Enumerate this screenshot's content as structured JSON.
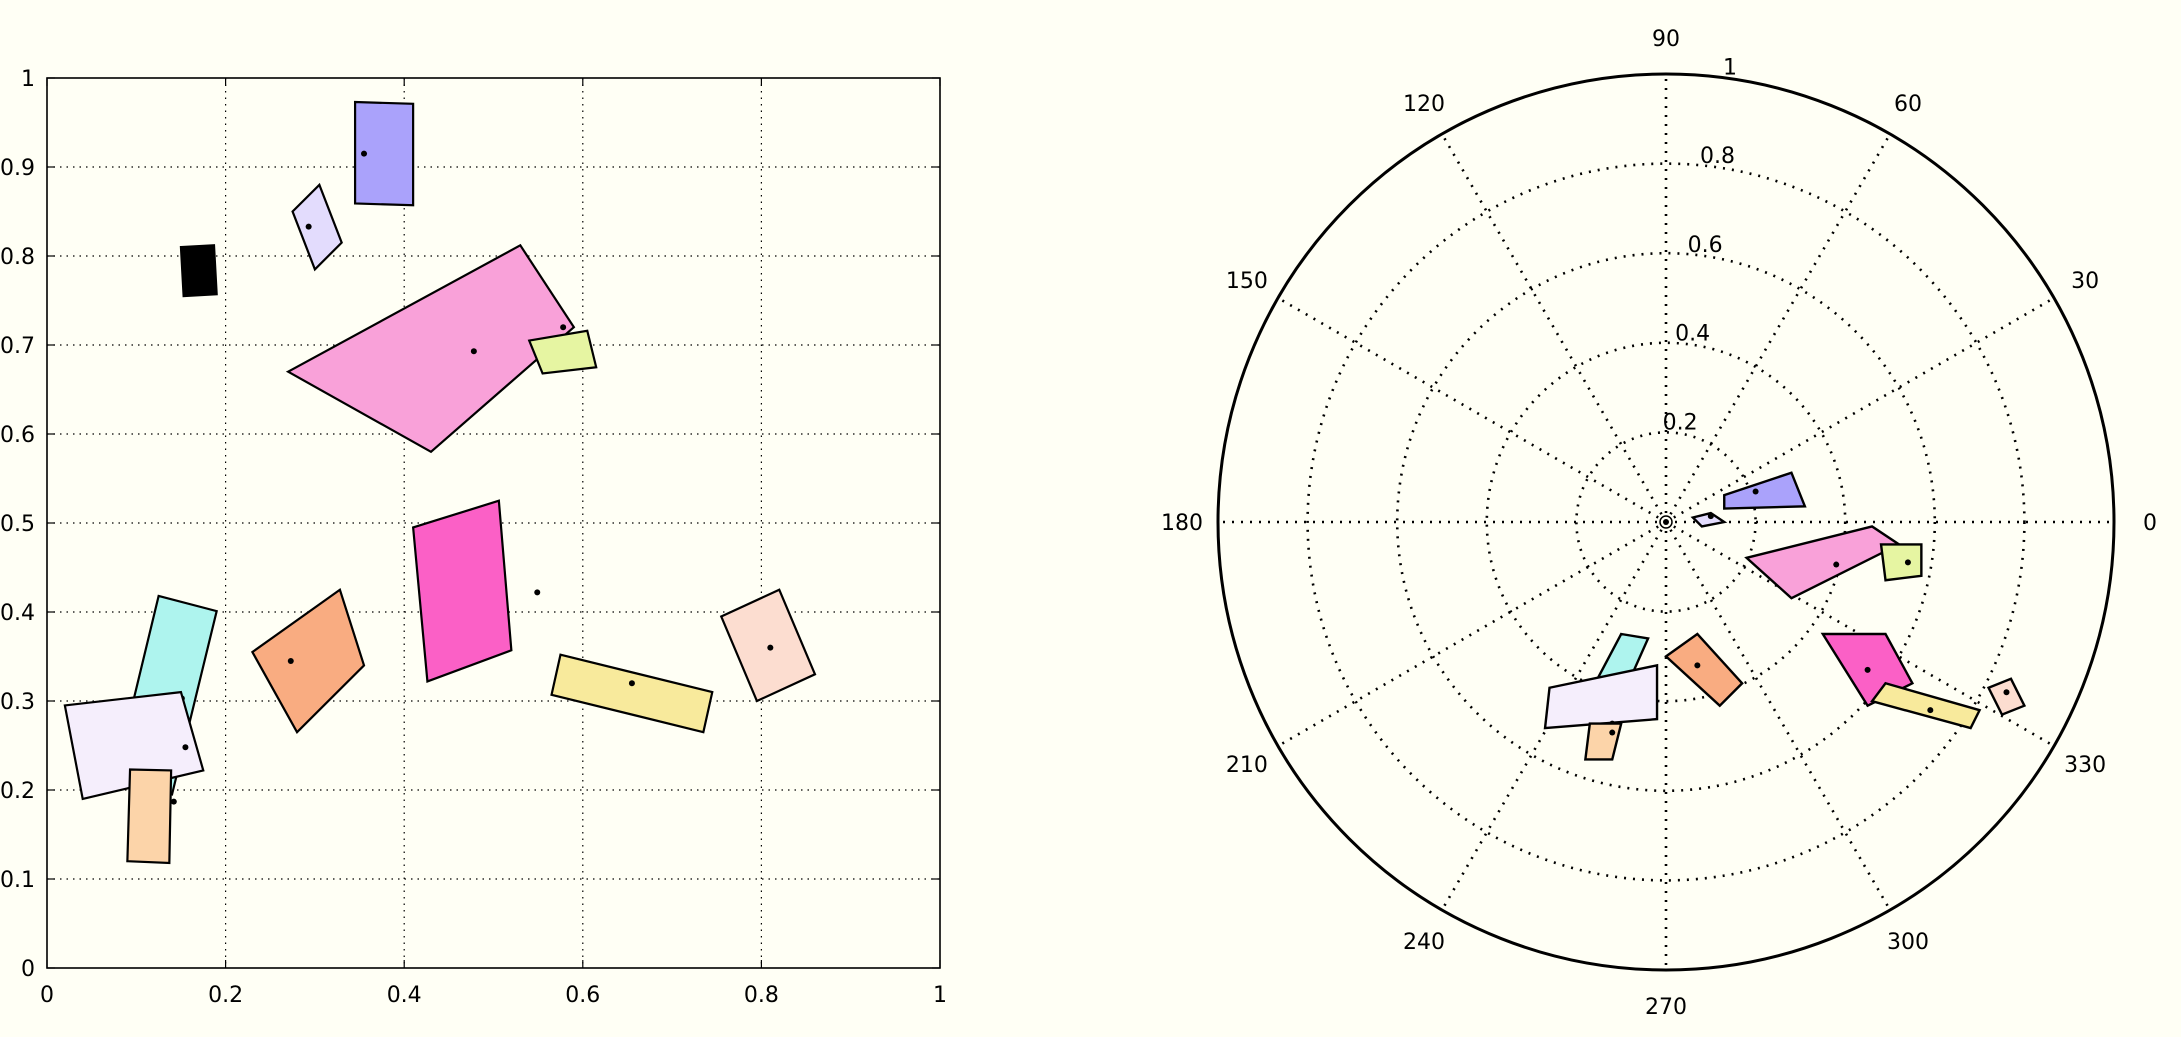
{
  "chart_data": [
    {
      "type": "scatter",
      "title": "",
      "xlabel": "",
      "ylabel": "",
      "xlim": [
        0,
        1
      ],
      "ylim": [
        0,
        1
      ],
      "grid": true,
      "xticks": [
        0,
        0.2,
        0.4,
        0.6,
        0.8,
        1
      ],
      "yticks": [
        0,
        0.1,
        0.2,
        0.3,
        0.4,
        0.5,
        0.6,
        0.7,
        0.8,
        0.9,
        1
      ],
      "xtick_labels": [
        "0",
        "0.2",
        "0.4",
        "0.6",
        "0.8",
        "1"
      ],
      "ytick_labels": [
        "0",
        "0.1",
        "0.2",
        "0.3",
        "0.4",
        "0.5",
        "0.6",
        "0.7",
        "0.8",
        "0.9",
        "1"
      ],
      "rectangles": [
        {
          "corners": [
            [
              0.345,
              0.973
            ],
            [
              0.41,
              0.971
            ],
            [
              0.41,
              0.857
            ],
            [
              0.345,
              0.859
            ]
          ],
          "center": [
            0.355,
            0.915
          ],
          "color": "#aaa2fb"
        },
        {
          "corners": [
            [
              0.275,
              0.85
            ],
            [
              0.305,
              0.88
            ],
            [
              0.33,
              0.815
            ],
            [
              0.3,
              0.785
            ]
          ],
          "center": [
            0.293,
            0.833
          ],
          "color": "#e3dcfd"
        },
        {
          "corners": [
            [
              0.15,
              0.81
            ],
            [
              0.187,
              0.812
            ],
            [
              0.19,
              0.757
            ],
            [
              0.153,
              0.755
            ]
          ],
          "center": [
            0.17,
            0.785
          ],
          "color": "#000000"
        },
        {
          "corners": [
            [
              0.27,
              0.67
            ],
            [
              0.53,
              0.812
            ],
            [
              0.59,
              0.72
            ],
            [
              0.43,
              0.58
            ]
          ],
          "center": [
            0.478,
            0.693
          ],
          "color": "#f9a1d9"
        },
        {
          "corners": [
            [
              0.54,
              0.705
            ],
            [
              0.605,
              0.716
            ],
            [
              0.615,
              0.675
            ],
            [
              0.555,
              0.668
            ]
          ],
          "center": [
            0.578,
            0.72
          ],
          "color": "#e6f5a2"
        },
        {
          "corners": [
            [
              0.41,
              0.495
            ],
            [
              0.506,
              0.525
            ],
            [
              0.52,
              0.357
            ],
            [
              0.426,
              0.322
            ]
          ],
          "center": [
            0.549,
            0.422
          ],
          "color": "#fb60c6"
        },
        {
          "corners": [
            [
              0.575,
              0.352
            ],
            [
              0.745,
              0.31
            ],
            [
              0.735,
              0.265
            ],
            [
              0.565,
              0.307
            ]
          ],
          "center": [
            0.655,
            0.32
          ],
          "color": "#f8ea9c"
        },
        {
          "corners": [
            [
              0.755,
              0.395
            ],
            [
              0.82,
              0.425
            ],
            [
              0.86,
              0.33
            ],
            [
              0.795,
              0.3
            ]
          ],
          "center": [
            0.81,
            0.36
          ],
          "color": "#fcddd0"
        },
        {
          "corners": [
            [
              0.23,
              0.355
            ],
            [
              0.328,
              0.425
            ],
            [
              0.355,
              0.34
            ],
            [
              0.28,
              0.265
            ]
          ],
          "center": [
            0.273,
            0.345
          ],
          "color": "#f9ac81"
        },
        {
          "corners": [
            [
              0.125,
              0.418
            ],
            [
              0.19,
              0.401
            ],
            [
              0.14,
              0.195
            ],
            [
              0.075,
              0.21
            ]
          ],
          "center": [
            0.151,
            0.303
          ],
          "color": "#aef4ee"
        },
        {
          "corners": [
            [
              0.02,
              0.295
            ],
            [
              0.15,
              0.31
            ],
            [
              0.175,
              0.222
            ],
            [
              0.04,
              0.19
            ]
          ],
          "center": [
            0.155,
            0.248
          ],
          "color": "#f5eefc"
        },
        {
          "corners": [
            [
              0.093,
              0.223
            ],
            [
              0.139,
              0.222
            ],
            [
              0.137,
              0.118
            ],
            [
              0.09,
              0.12
            ]
          ],
          "center": [
            0.142,
            0.187
          ],
          "color": "#fcd4a9"
        }
      ]
    },
    {
      "type": "scatter",
      "title": "",
      "polar": true,
      "rlim": [
        0,
        1
      ],
      "grid": true,
      "angle_ticks": [
        0,
        30,
        60,
        90,
        120,
        150,
        180,
        210,
        240,
        270,
        300,
        330
      ],
      "angle_labels": [
        "0",
        "30",
        "60",
        "90",
        "120",
        "150",
        "180",
        "210",
        "240",
        "270",
        "300",
        "330"
      ],
      "radius_ticks": [
        0.2,
        0.4,
        0.6,
        0.8,
        1
      ],
      "radius_labels": [
        "0.2",
        "0.4",
        "0.6",
        "0.8",
        "1"
      ],
      "shapes": [
        {
          "corners": [
            [
              0.13,
              0.06
            ],
            [
              0.28,
              0.11
            ],
            [
              0.31,
              0.035
            ],
            [
              0.13,
              0.03
            ]
          ],
          "center": [
            0.2,
            0.068
          ],
          "color": "#aaa2fb"
        },
        {
          "corners": [
            [
              0.06,
              0.01
            ],
            [
              0.1,
              0.02
            ],
            [
              0.13,
              0.0
            ],
            [
              0.08,
              -0.01
            ]
          ],
          "center": [
            0.1,
            0.013
          ],
          "color": "#e3dcfd"
        },
        {
          "corners": [
            [
              0.18,
              -0.08
            ],
            [
              0.46,
              -0.01
            ],
            [
              0.52,
              -0.05
            ],
            [
              0.28,
              -0.17
            ]
          ],
          "center": [
            0.38,
            -0.095
          ],
          "color": "#f9a1d9"
        },
        {
          "corners": [
            [
              0.48,
              -0.05
            ],
            [
              0.57,
              -0.05
            ],
            [
              0.57,
              -0.12
            ],
            [
              0.49,
              -0.13
            ]
          ],
          "center": [
            0.54,
            -0.09
          ],
          "color": "#e6f5a2"
        },
        {
          "corners": [
            [
              0.35,
              -0.25
            ],
            [
              0.49,
              -0.25
            ],
            [
              0.55,
              -0.36
            ],
            [
              0.45,
              -0.41
            ]
          ],
          "center": [
            0.45,
            -0.33
          ],
          "color": "#fb60c6"
        },
        {
          "corners": [
            [
              0.49,
              -0.36
            ],
            [
              0.7,
              -0.42
            ],
            [
              0.68,
              -0.46
            ],
            [
              0.46,
              -0.4
            ]
          ],
          "center": [
            0.59,
            -0.42
          ],
          "color": "#f8ea9c"
        },
        {
          "corners": [
            [
              0.72,
              -0.37
            ],
            [
              0.77,
              -0.35
            ],
            [
              0.8,
              -0.41
            ],
            [
              0.75,
              -0.43
            ]
          ],
          "center": [
            0.76,
            -0.38
          ],
          "color": "#fcddd0"
        },
        {
          "corners": [
            [
              0.0,
              -0.3
            ],
            [
              0.07,
              -0.25
            ],
            [
              0.17,
              -0.36
            ],
            [
              0.12,
              -0.41
            ]
          ],
          "center": [
            0.07,
            -0.32
          ],
          "color": "#f9ac81"
        },
        {
          "corners": [
            [
              -0.1,
              -0.25
            ],
            [
              -0.04,
              -0.26
            ],
            [
              -0.12,
              -0.44
            ],
            [
              -0.19,
              -0.42
            ]
          ],
          "center": [
            -0.09,
            -0.35
          ],
          "color": "#aef4ee"
        },
        {
          "corners": [
            [
              -0.26,
              -0.37
            ],
            [
              -0.02,
              -0.32
            ],
            [
              -0.02,
              -0.44
            ],
            [
              -0.27,
              -0.46
            ]
          ],
          "center": [
            -0.12,
            -0.45
          ],
          "color": "#f5eefc"
        },
        {
          "corners": [
            [
              -0.17,
              -0.45
            ],
            [
              -0.1,
              -0.45
            ],
            [
              -0.12,
              -0.53
            ],
            [
              -0.18,
              -0.53
            ]
          ],
          "center": [
            -0.12,
            -0.47
          ],
          "color": "#fcd4a9"
        }
      ]
    }
  ]
}
